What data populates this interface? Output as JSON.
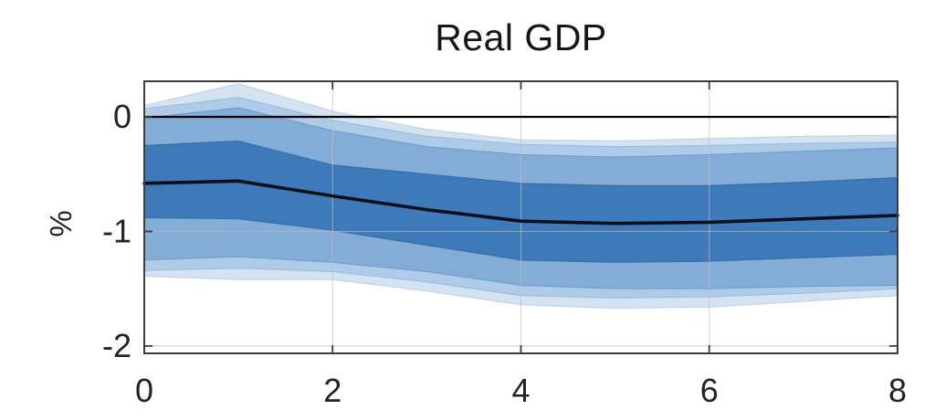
{
  "chart_data": {
    "type": "area",
    "title": "Real GDP",
    "ylabel": "%",
    "xlabel": "",
    "x": [
      0,
      1,
      2,
      3,
      4,
      5,
      6,
      7,
      8
    ],
    "xlim": [
      0,
      8
    ],
    "ylim": [
      -2.064,
      0.311
    ],
    "xticks": [
      0,
      2,
      4,
      6,
      8
    ],
    "yticks": [
      0,
      -1,
      -2
    ],
    "grid": "on",
    "legend": "none",
    "zero_line": 0,
    "median": [
      -0.58,
      -0.56,
      -0.69,
      -0.81,
      -0.91,
      -0.93,
      -0.92,
      -0.89,
      -0.86
    ],
    "bands": [
      {
        "name": "outer-band",
        "color": "#d4e3f2",
        "edge": "#b7cde3",
        "top": [
          0.1,
          0.29,
          0.05,
          -0.11,
          -0.2,
          -0.21,
          -0.19,
          -0.17,
          -0.16
        ],
        "bottom": [
          -1.39,
          -1.42,
          -1.42,
          -1.52,
          -1.64,
          -1.67,
          -1.66,
          -1.61,
          -1.56
        ]
      },
      {
        "name": "mid-outer-band",
        "color": "#aecbe8",
        "edge": "#93b7db",
        "top": [
          0.07,
          0.17,
          -0.03,
          -0.17,
          -0.24,
          -0.26,
          -0.25,
          -0.23,
          -0.22
        ],
        "bottom": [
          -1.34,
          -1.32,
          -1.35,
          -1.44,
          -1.56,
          -1.58,
          -1.57,
          -1.54,
          -1.5
        ]
      },
      {
        "name": "mid-inner-band",
        "color": "#83acd7",
        "edge": "#6899cb",
        "top": [
          -0.01,
          0.08,
          -0.12,
          -0.26,
          -0.33,
          -0.35,
          -0.33,
          -0.3,
          -0.27
        ],
        "bottom": [
          -1.25,
          -1.22,
          -1.27,
          -1.35,
          -1.47,
          -1.5,
          -1.5,
          -1.48,
          -1.47
        ]
      },
      {
        "name": "inner-band",
        "color": "#3e7ab9",
        "edge": "#2f67a3",
        "top": [
          -0.25,
          -0.21,
          -0.42,
          -0.5,
          -0.58,
          -0.6,
          -0.6,
          -0.57,
          -0.53
        ],
        "bottom": [
          -0.88,
          -0.89,
          -0.99,
          -1.12,
          -1.25,
          -1.27,
          -1.26,
          -1.23,
          -1.2
        ]
      }
    ],
    "colors": {
      "median_line": "#0a0f1e",
      "zero_line": "#000000",
      "grid": "#bebebe",
      "spine": "#3d3d3d",
      "tick_text": "#232323"
    }
  }
}
